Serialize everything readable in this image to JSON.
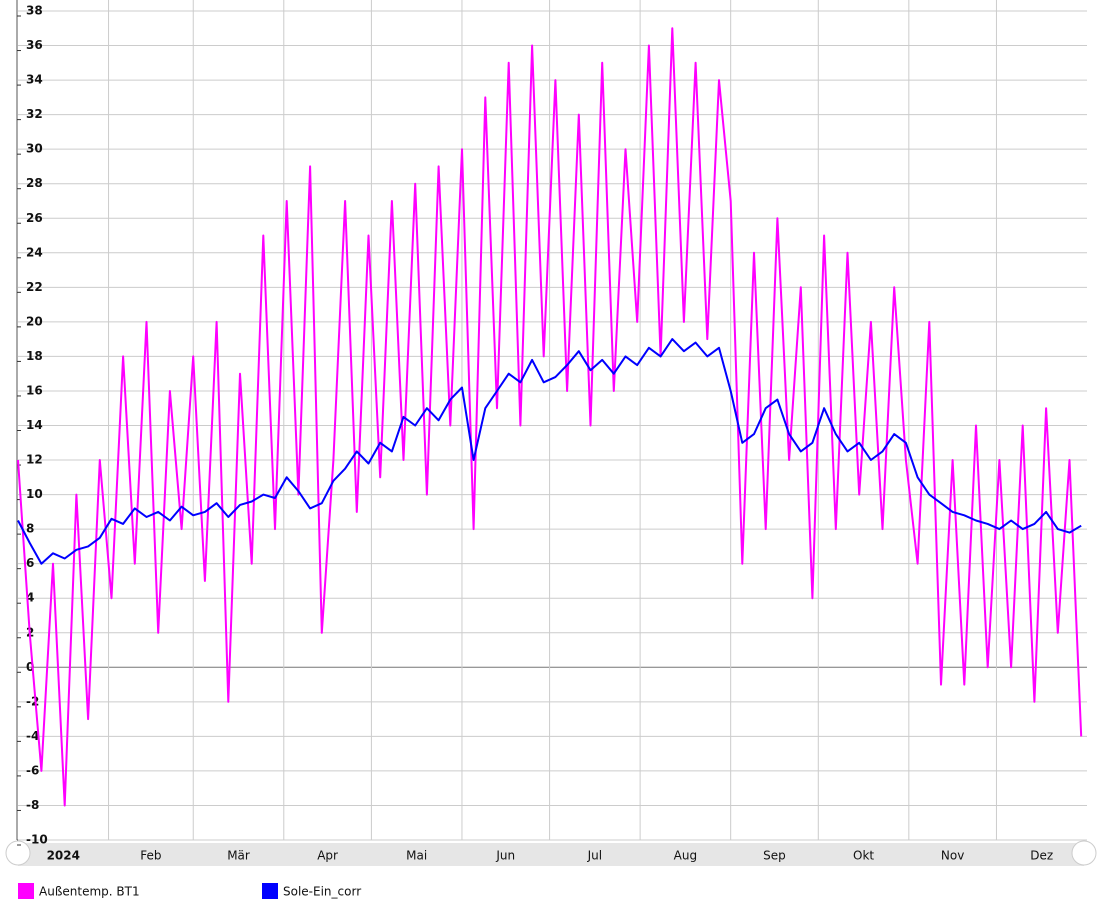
{
  "chart_data": {
    "type": "line",
    "x": [
      0,
      4,
      8,
      12,
      16,
      20,
      24,
      28,
      32,
      36,
      40,
      44,
      48,
      52,
      56,
      60,
      64,
      68,
      72,
      76,
      80,
      84,
      88,
      92,
      96,
      100,
      104,
      108,
      112,
      116,
      120,
      124,
      128,
      132,
      136,
      140,
      144,
      148,
      152,
      156,
      160,
      164,
      168,
      172,
      176,
      180,
      184,
      188,
      192,
      196,
      200,
      204,
      208,
      212,
      216,
      220,
      224,
      228,
      232,
      236,
      240,
      244,
      248,
      252,
      256,
      260,
      264,
      268,
      272,
      276,
      280,
      284,
      288,
      292,
      296,
      300,
      304,
      308,
      312,
      316,
      320,
      324,
      328,
      332,
      336,
      340,
      344,
      348,
      352,
      356,
      360,
      364
    ],
    "series": [
      {
        "name": "Außentemp. BT1",
        "color": "#ff00ff",
        "values": [
          12,
          2,
          -6,
          6,
          -8,
          10,
          -3,
          12,
          4,
          18,
          6,
          20,
          2,
          16,
          8,
          18,
          5,
          20,
          -2,
          17,
          6,
          25,
          8,
          27,
          10,
          29,
          2,
          12,
          27,
          9,
          25,
          11,
          27,
          12,
          28,
          10,
          29,
          14,
          30,
          8,
          33,
          15,
          35,
          14,
          36,
          18,
          34,
          16,
          32,
          14,
          35,
          16,
          30,
          20,
          36,
          18,
          37,
          20,
          35,
          19,
          34,
          27,
          6,
          24,
          8,
          26,
          12,
          22,
          4,
          25,
          8,
          24,
          10,
          20,
          8,
          22,
          12,
          6,
          20,
          -1,
          12,
          -1,
          14,
          0,
          12,
          0,
          14,
          -2,
          15,
          2,
          12,
          -4
        ]
      },
      {
        "name": "Sole-Ein_corr",
        "color": "#0000ff",
        "values": [
          8.5,
          7.2,
          6.0,
          6.6,
          6.3,
          6.8,
          7.0,
          7.5,
          8.6,
          8.3,
          9.2,
          8.7,
          9.0,
          8.5,
          9.3,
          8.8,
          9.0,
          9.5,
          8.7,
          9.4,
          9.6,
          10.0,
          9.8,
          11.0,
          10.2,
          9.2,
          9.5,
          10.8,
          11.5,
          12.5,
          11.8,
          13.0,
          12.5,
          14.5,
          14.0,
          15.0,
          14.3,
          15.5,
          16.2,
          12.0,
          15.0,
          16.0,
          17.0,
          16.5,
          17.8,
          16.5,
          16.8,
          17.5,
          18.3,
          17.2,
          17.8,
          17.0,
          18.0,
          17.5,
          18.5,
          18.0,
          19.0,
          18.3,
          18.8,
          18.0,
          18.5,
          16.0,
          13.0,
          13.5,
          15.0,
          15.5,
          13.5,
          12.5,
          13.0,
          15.0,
          13.5,
          12.5,
          13.0,
          12.0,
          12.5,
          13.5,
          13.0,
          11.0,
          10.0,
          9.5,
          9.0,
          8.8,
          8.5,
          8.3,
          8.0,
          8.5,
          8.0,
          8.3,
          9.0,
          8.0,
          7.8,
          8.2
        ]
      }
    ],
    "xlim": [
      0,
      366
    ],
    "xticks": [
      {
        "value": 0,
        "label": "2024"
      },
      {
        "value": 31,
        "label": "Feb"
      },
      {
        "value": 60,
        "label": "Mär"
      },
      {
        "value": 91,
        "label": "Apr"
      },
      {
        "value": 121,
        "label": "Mai"
      },
      {
        "value": 152,
        "label": "Jun"
      },
      {
        "value": 182,
        "label": "Jul"
      },
      {
        "value": 213,
        "label": "Aug"
      },
      {
        "value": 244,
        "label": "Sep"
      },
      {
        "value": 274,
        "label": "Okt"
      },
      {
        "value": 305,
        "label": "Nov"
      },
      {
        "value": 335,
        "label": "Dez"
      }
    ],
    "ylim": [
      -10,
      38
    ],
    "yticks": [
      -10,
      -8,
      -6,
      -4,
      -2,
      0,
      2,
      4,
      6,
      8,
      10,
      12,
      14,
      16,
      18,
      20,
      22,
      24,
      26,
      28,
      30,
      32,
      34,
      36,
      38
    ],
    "grid": true
  }
}
